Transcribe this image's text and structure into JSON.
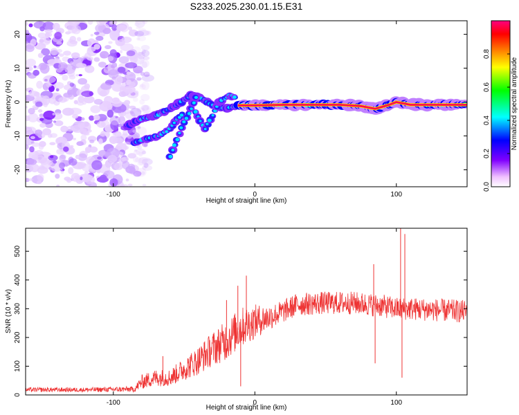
{
  "figure_title": "S233.2025.230.01.15.E31",
  "chart_data": [
    {
      "type": "heatmap",
      "title": "S233.2025.230.01.15.E31",
      "xlabel": "Height of straight line (km)",
      "ylabel": "Frequency (Hz)",
      "xlim": [
        -162,
        150
      ],
      "ylim": [
        -25,
        24
      ],
      "xticks": [
        -100,
        0,
        100
      ],
      "xtick_labels": [
        "-100",
        "0",
        "100"
      ],
      "yticks": [
        -20,
        -10,
        0,
        10,
        20
      ],
      "ytick_labels": [
        "-20",
        "-10",
        "0",
        "10",
        "20"
      ],
      "colorbar": {
        "label": "Normalized spectral amplitude",
        "range": [
          0,
          1
        ],
        "ticks": [
          0,
          0.2,
          0.4,
          0.6,
          0.8
        ],
        "tick_labels": [
          "0.0",
          "0.2",
          "0.4",
          "0.6",
          "0.8"
        ],
        "colormap": [
          "#ffffff",
          "#f0c0ff",
          "#8000ff",
          "#0000ff",
          "#00ffff",
          "#00ff00",
          "#ffff00",
          "#ff8000",
          "#ff0000",
          "#ff0080"
        ]
      },
      "noise_region": {
        "x_range": [
          -162,
          -85
        ],
        "y_range": [
          -25,
          24
        ],
        "level": 0.15
      },
      "features": [
        {
          "name": "doppler trace",
          "points": [
            [
              -90,
              -7
            ],
            [
              -80,
              -5
            ],
            [
              -70,
              -4
            ],
            [
              -60,
              -2
            ],
            [
              -52,
              0
            ],
            [
              -45,
              2
            ],
            [
              -38,
              1
            ],
            [
              -30,
              -1
            ],
            [
              -20,
              -2
            ],
            [
              -12,
              -1
            ],
            [
              0,
              -1
            ],
            [
              20,
              -0.8
            ],
            [
              60,
              -0.8
            ],
            [
              75,
              -1.2
            ],
            [
              85,
              -2
            ],
            [
              95,
              -0.8
            ],
            [
              100,
              0
            ],
            [
              110,
              -0.8
            ],
            [
              150,
              -0.8
            ]
          ]
        },
        {
          "name": "lower branch",
          "points": [
            [
              -85,
              -12
            ],
            [
              -78,
              -11
            ],
            [
              -68,
              -10
            ],
            [
              -60,
              -8
            ],
            [
              -55,
              -5
            ],
            [
              -50,
              -3
            ]
          ]
        },
        {
          "name": "descending branch",
          "points": [
            [
              -60,
              -16
            ],
            [
              -55,
              -11
            ],
            [
              -50,
              -6
            ],
            [
              -45,
              -2
            ],
            [
              -40,
              3
            ]
          ]
        },
        {
          "name": "loop branch",
          "points": [
            [
              -42,
              -3
            ],
            [
              -35,
              -8
            ],
            [
              -30,
              -4
            ],
            [
              -25,
              0
            ],
            [
              -18,
              2
            ],
            [
              -12,
              1
            ]
          ]
        }
      ],
      "strong_band": {
        "x_range": [
          -15,
          150
        ],
        "y": -0.8,
        "level": 0.95
      }
    },
    {
      "type": "line",
      "title": "",
      "xlabel": "Height of straight line (km)",
      "ylabel": "SNR (10 * v/v)",
      "xlim": [
        -162,
        150
      ],
      "ylim": [
        0,
        580
      ],
      "xticks": [
        -100,
        0,
        100
      ],
      "xtick_labels": [
        "-100",
        "0",
        "100"
      ],
      "yticks": [
        0,
        100,
        200,
        300,
        400,
        500
      ],
      "ytick_labels": [
        "0",
        "100",
        "200",
        "300",
        "400",
        "500"
      ],
      "color": "#ee3333",
      "series": [
        {
          "name": "SNR envelope",
          "x": [
            -162,
            -120,
            -85,
            -80,
            -70,
            -60,
            -50,
            -40,
            -30,
            -20,
            -10,
            0,
            10,
            20,
            30,
            50,
            70,
            90,
            100,
            110,
            130,
            150
          ],
          "mean": [
            18,
            18,
            20,
            45,
            60,
            60,
            90,
            120,
            160,
            190,
            235,
            255,
            270,
            290,
            315,
            320,
            320,
            310,
            300,
            300,
            295,
            290
          ],
          "spread": [
            8,
            8,
            10,
            25,
            30,
            30,
            40,
            50,
            60,
            70,
            70,
            60,
            45,
            40,
            40,
            40,
            40,
            40,
            40,
            40,
            40,
            40
          ]
        }
      ],
      "spikes": [
        {
          "x": -65,
          "y": 135
        },
        {
          "x": -20,
          "y": 330
        },
        {
          "x": -12,
          "y": 380
        },
        {
          "x": -6,
          "y": 415
        },
        {
          "x": -10,
          "y": 30
        },
        {
          "x": 84,
          "y": 455
        },
        {
          "x": 85,
          "y": 110
        },
        {
          "x": 103,
          "y": 580
        },
        {
          "x": 104,
          "y": 60
        },
        {
          "x": 106,
          "y": 560
        }
      ]
    }
  ]
}
